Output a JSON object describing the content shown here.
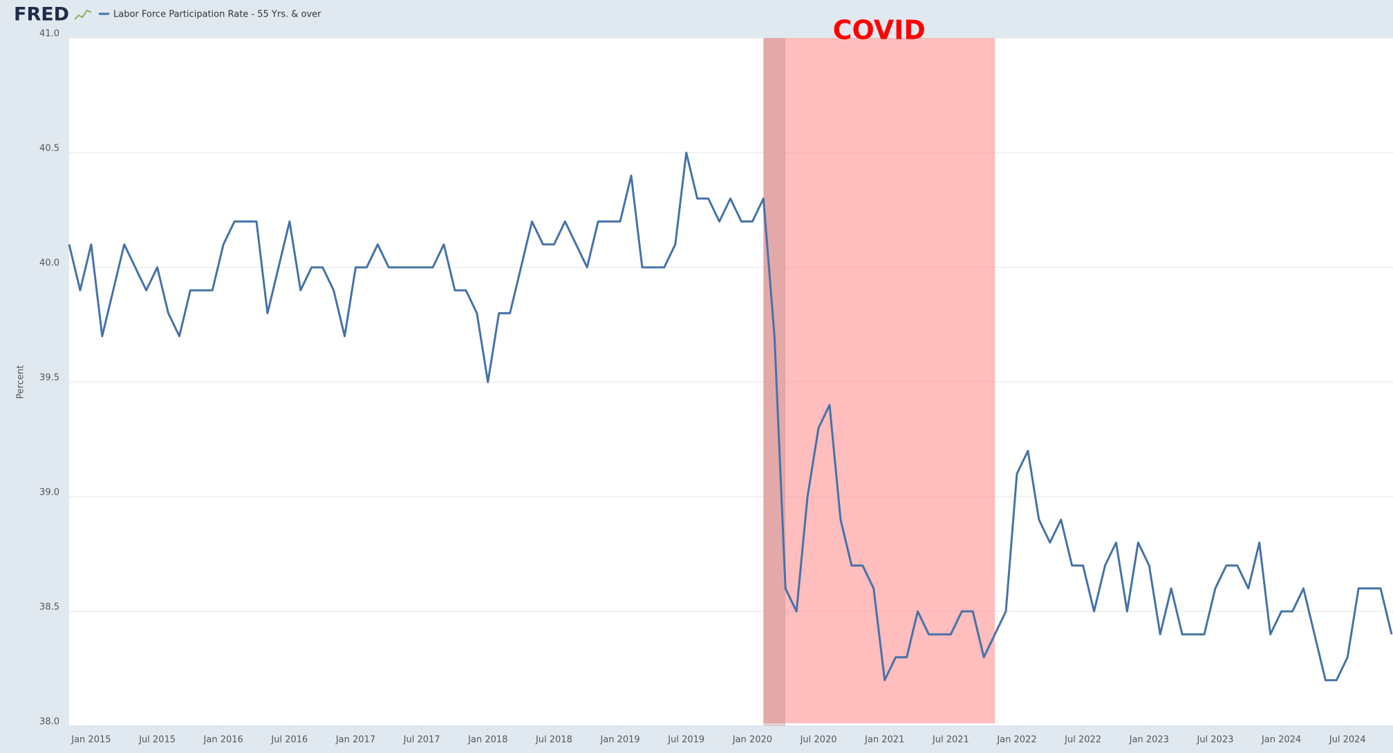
{
  "chart_data": {
    "type": "line",
    "logo": "FRED",
    "ylabel": "Percent",
    "x": [
      "2014-11",
      "2014-12",
      "2015-01",
      "2015-02",
      "2015-03",
      "2015-04",
      "2015-05",
      "2015-06",
      "2015-07",
      "2015-08",
      "2015-09",
      "2015-10",
      "2015-11",
      "2015-12",
      "2016-01",
      "2016-02",
      "2016-03",
      "2016-04",
      "2016-05",
      "2016-06",
      "2016-07",
      "2016-08",
      "2016-09",
      "2016-10",
      "2016-11",
      "2016-12",
      "2017-01",
      "2017-02",
      "2017-03",
      "2017-04",
      "2017-05",
      "2017-06",
      "2017-07",
      "2017-08",
      "2017-09",
      "2017-10",
      "2017-11",
      "2017-12",
      "2018-01",
      "2018-02",
      "2018-03",
      "2018-04",
      "2018-05",
      "2018-06",
      "2018-07",
      "2018-08",
      "2018-09",
      "2018-10",
      "2018-11",
      "2018-12",
      "2019-01",
      "2019-02",
      "2019-03",
      "2019-04",
      "2019-05",
      "2019-06",
      "2019-07",
      "2019-08",
      "2019-09",
      "2019-10",
      "2019-11",
      "2019-12",
      "2020-01",
      "2020-02",
      "2020-03",
      "2020-04",
      "2020-05",
      "2020-06",
      "2020-07",
      "2020-08",
      "2020-09",
      "2020-10",
      "2020-11",
      "2020-12",
      "2021-01",
      "2021-02",
      "2021-03",
      "2021-04",
      "2021-05",
      "2021-06",
      "2021-07",
      "2021-08",
      "2021-09",
      "2021-10",
      "2021-11",
      "2021-12",
      "2022-01",
      "2022-02",
      "2022-03",
      "2022-04",
      "2022-05",
      "2022-06",
      "2022-07",
      "2022-08",
      "2022-09",
      "2022-10",
      "2022-11",
      "2022-12",
      "2023-01",
      "2023-02",
      "2023-03",
      "2023-04",
      "2023-05",
      "2023-06",
      "2023-07",
      "2023-08",
      "2023-09",
      "2023-10",
      "2023-11",
      "2023-12",
      "2024-01",
      "2024-02",
      "2024-03",
      "2024-04",
      "2024-05",
      "2024-06",
      "2024-07",
      "2024-08",
      "2024-09",
      "2024-10",
      "2024-11"
    ],
    "series": [
      {
        "name": "Labor Force Participation Rate - 55 Yrs. & over",
        "color": "#4572a7",
        "values": [
          40.1,
          39.9,
          40.1,
          39.7,
          39.9,
          40.1,
          40.0,
          39.9,
          40.0,
          39.8,
          39.7,
          39.9,
          39.9,
          39.9,
          40.1,
          40.2,
          40.2,
          40.2,
          39.8,
          40.0,
          40.2,
          39.9,
          40.0,
          40.0,
          39.9,
          39.7,
          40.0,
          40.0,
          40.1,
          40.0,
          40.0,
          40.0,
          40.0,
          40.0,
          40.1,
          39.9,
          39.9,
          39.8,
          39.5,
          39.8,
          39.8,
          40.0,
          40.2,
          40.1,
          40.1,
          40.2,
          40.1,
          40.0,
          40.2,
          40.2,
          40.2,
          40.4,
          40.0,
          40.0,
          40.0,
          40.1,
          40.5,
          40.3,
          40.3,
          40.2,
          40.3,
          40.2,
          40.2,
          40.3,
          39.7,
          38.6,
          38.5,
          39.0,
          39.3,
          39.4,
          38.9,
          38.7,
          38.7,
          38.6,
          38.2,
          38.3,
          38.3,
          38.5,
          38.4,
          38.4,
          38.4,
          38.5,
          38.5,
          38.3,
          38.4,
          38.5,
          39.1,
          39.2,
          38.9,
          38.8,
          38.9,
          38.7,
          38.7,
          38.5,
          38.7,
          38.8,
          38.5,
          38.8,
          38.7,
          38.4,
          38.6,
          38.4,
          38.4,
          38.4,
          38.6,
          38.7,
          38.7,
          38.6,
          38.8,
          38.4,
          38.5,
          38.5,
          38.6,
          38.4,
          38.2,
          38.2,
          38.3,
          38.6,
          38.6,
          38.6,
          38.4
        ]
      }
    ],
    "xlim": [
      "2014-11",
      "2024-11"
    ],
    "xticks": [
      {
        "value": "2015-01",
        "label": "Jan 2015"
      },
      {
        "value": "2015-07",
        "label": "Jul 2015"
      },
      {
        "value": "2016-01",
        "label": "Jan 2016"
      },
      {
        "value": "2016-07",
        "label": "Jul 2016"
      },
      {
        "value": "2017-01",
        "label": "Jan 2017"
      },
      {
        "value": "2017-07",
        "label": "Jul 2017"
      },
      {
        "value": "2018-01",
        "label": "Jan 2018"
      },
      {
        "value": "2018-07",
        "label": "Jul 2018"
      },
      {
        "value": "2019-01",
        "label": "Jan 2019"
      },
      {
        "value": "2019-07",
        "label": "Jul 2019"
      },
      {
        "value": "2020-01",
        "label": "Jan 2020"
      },
      {
        "value": "2020-07",
        "label": "Jul 2020"
      },
      {
        "value": "2021-01",
        "label": "Jan 2021"
      },
      {
        "value": "2021-07",
        "label": "Jul 2021"
      },
      {
        "value": "2022-01",
        "label": "Jan 2022"
      },
      {
        "value": "2022-07",
        "label": "Jul 2022"
      },
      {
        "value": "2023-01",
        "label": "Jan 2023"
      },
      {
        "value": "2023-07",
        "label": "Jul 2023"
      },
      {
        "value": "2024-01",
        "label": "Jan 2024"
      },
      {
        "value": "2024-07",
        "label": "Jul 2024"
      }
    ],
    "ylim": [
      38,
      41
    ],
    "yticks": [
      {
        "value": 38,
        "label": "38.0"
      },
      38.5,
      {
        "value": 39,
        "label": "39.0"
      },
      39.5,
      {
        "value": 40,
        "label": "40.0"
      },
      40.5,
      {
        "value": 41,
        "label": "41.0"
      }
    ],
    "grid": true,
    "recessions": [
      {
        "start": "2020-02",
        "end": "2020-04"
      }
    ],
    "annotation": {
      "text": "COVID",
      "start": "2020-02",
      "end": "2021-11",
      "color": "#ff0000"
    }
  }
}
